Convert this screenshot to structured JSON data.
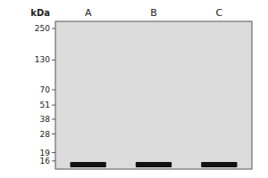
{
  "chart_data": {
    "type": "gel",
    "y_label": "kDa",
    "categories": [
      "A",
      "B",
      "C"
    ],
    "values": [
      14.8,
      14.8,
      14.8
    ],
    "color": "#111111",
    "ylim": [
      13.5,
      290
    ],
    "yticks": [
      250,
      130,
      70,
      51,
      38,
      28,
      19,
      16
    ],
    "log": "y",
    "grid": false
  }
}
